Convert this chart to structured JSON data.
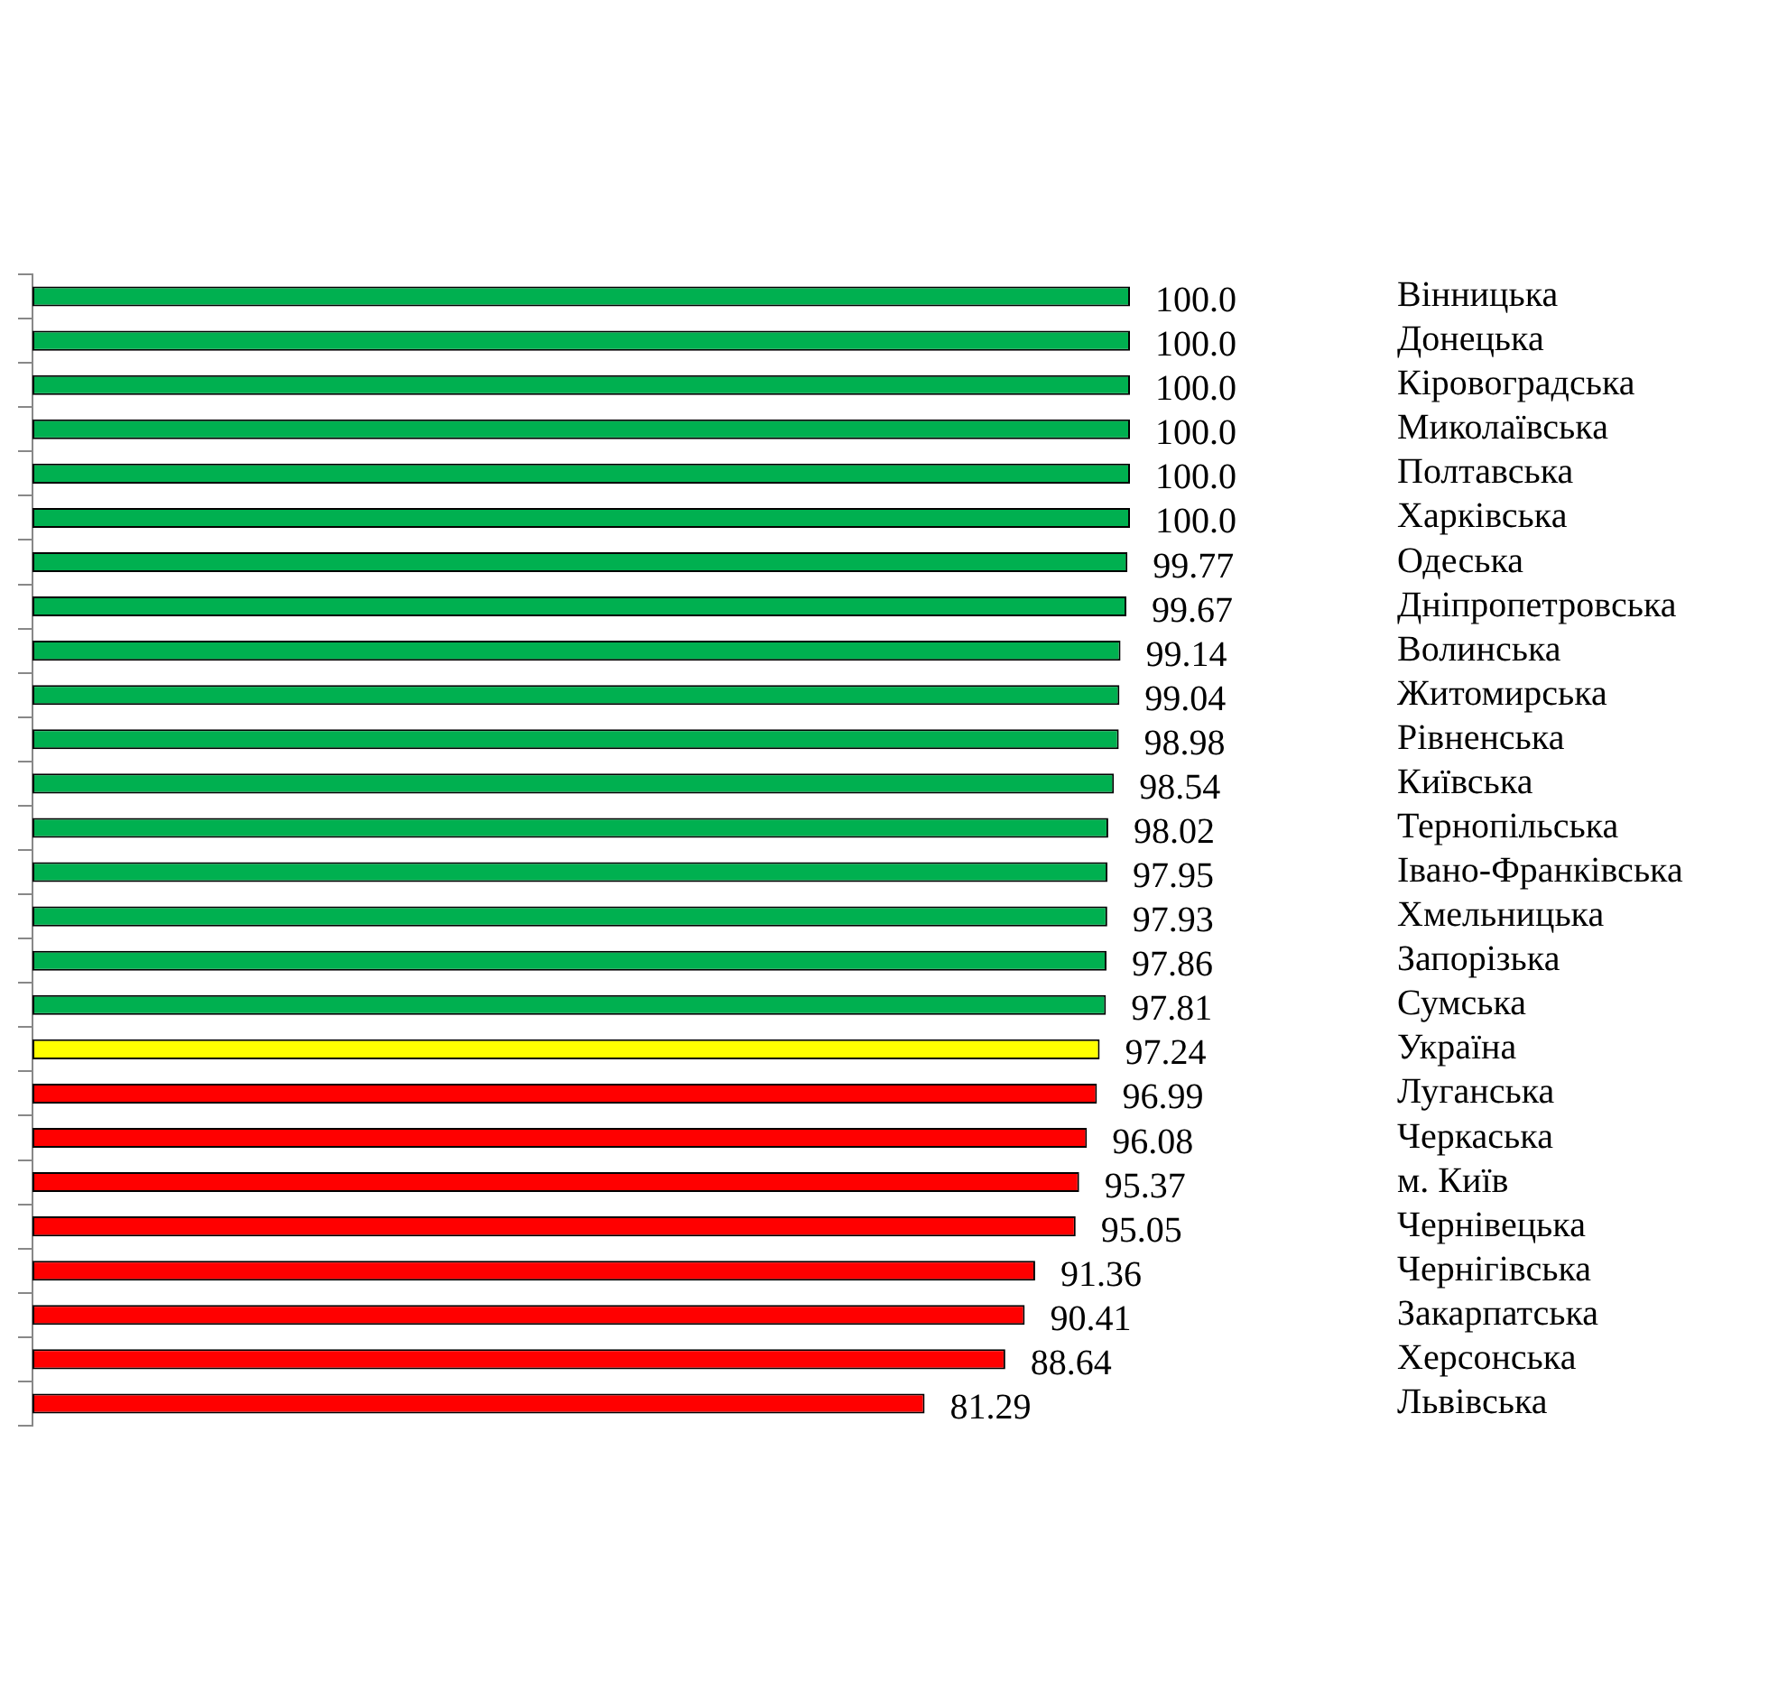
{
  "chart_data": {
    "type": "bar",
    "orientation": "horizontal",
    "categories": [
      "Вінницька",
      "Донецька",
      "Кіровоградська",
      "Миколаївська",
      "Полтавська",
      "Харківська",
      "Одеська",
      "Дніпропетровська",
      "Волинська",
      "Житомирська",
      "Рівненська",
      "Київська",
      "Тернопільська",
      "Івано-Франківська",
      "Хмельницька",
      "Запорізька",
      "Сумська",
      "Україна",
      "Луганська",
      "Черкаська",
      "м. Київ",
      "Чернівецька",
      "Чернігівська",
      "Закарпатська",
      "Херсонська",
      "Львівська"
    ],
    "values": [
      100,
      100,
      100,
      100,
      100,
      100,
      99.77,
      99.67,
      99.14,
      99.04,
      98.98,
      98.54,
      98.02,
      97.95,
      97.93,
      97.86,
      97.81,
      97.24,
      96.99,
      96.08,
      95.37,
      95.05,
      91.36,
      90.41,
      88.64,
      81.29
    ],
    "value_labels": [
      "100.0",
      "100.0",
      "100.0",
      "100.0",
      "100.0",
      "100.0",
      "99.77",
      "99.67",
      "99.14",
      "99.04",
      "98.98",
      "98.54",
      "98.02",
      "97.95",
      "97.93",
      "97.86",
      "97.81",
      "97.24",
      "96.99",
      "96.08",
      "95.37",
      "95.05",
      "91.36",
      "90.41",
      "88.64",
      "81.29"
    ],
    "colors": [
      "#00b050",
      "#00b050",
      "#00b050",
      "#00b050",
      "#00b050",
      "#00b050",
      "#00b050",
      "#00b050",
      "#00b050",
      "#00b050",
      "#00b050",
      "#00b050",
      "#00b050",
      "#00b050",
      "#00b050",
      "#00b050",
      "#00b050",
      "#ffff00",
      "#ff0000",
      "#ff0000",
      "#ff0000",
      "#ff0000",
      "#ff0000",
      "#ff0000",
      "#ff0000",
      "#ff0000"
    ],
    "xlim": [
      0,
      100
    ]
  }
}
